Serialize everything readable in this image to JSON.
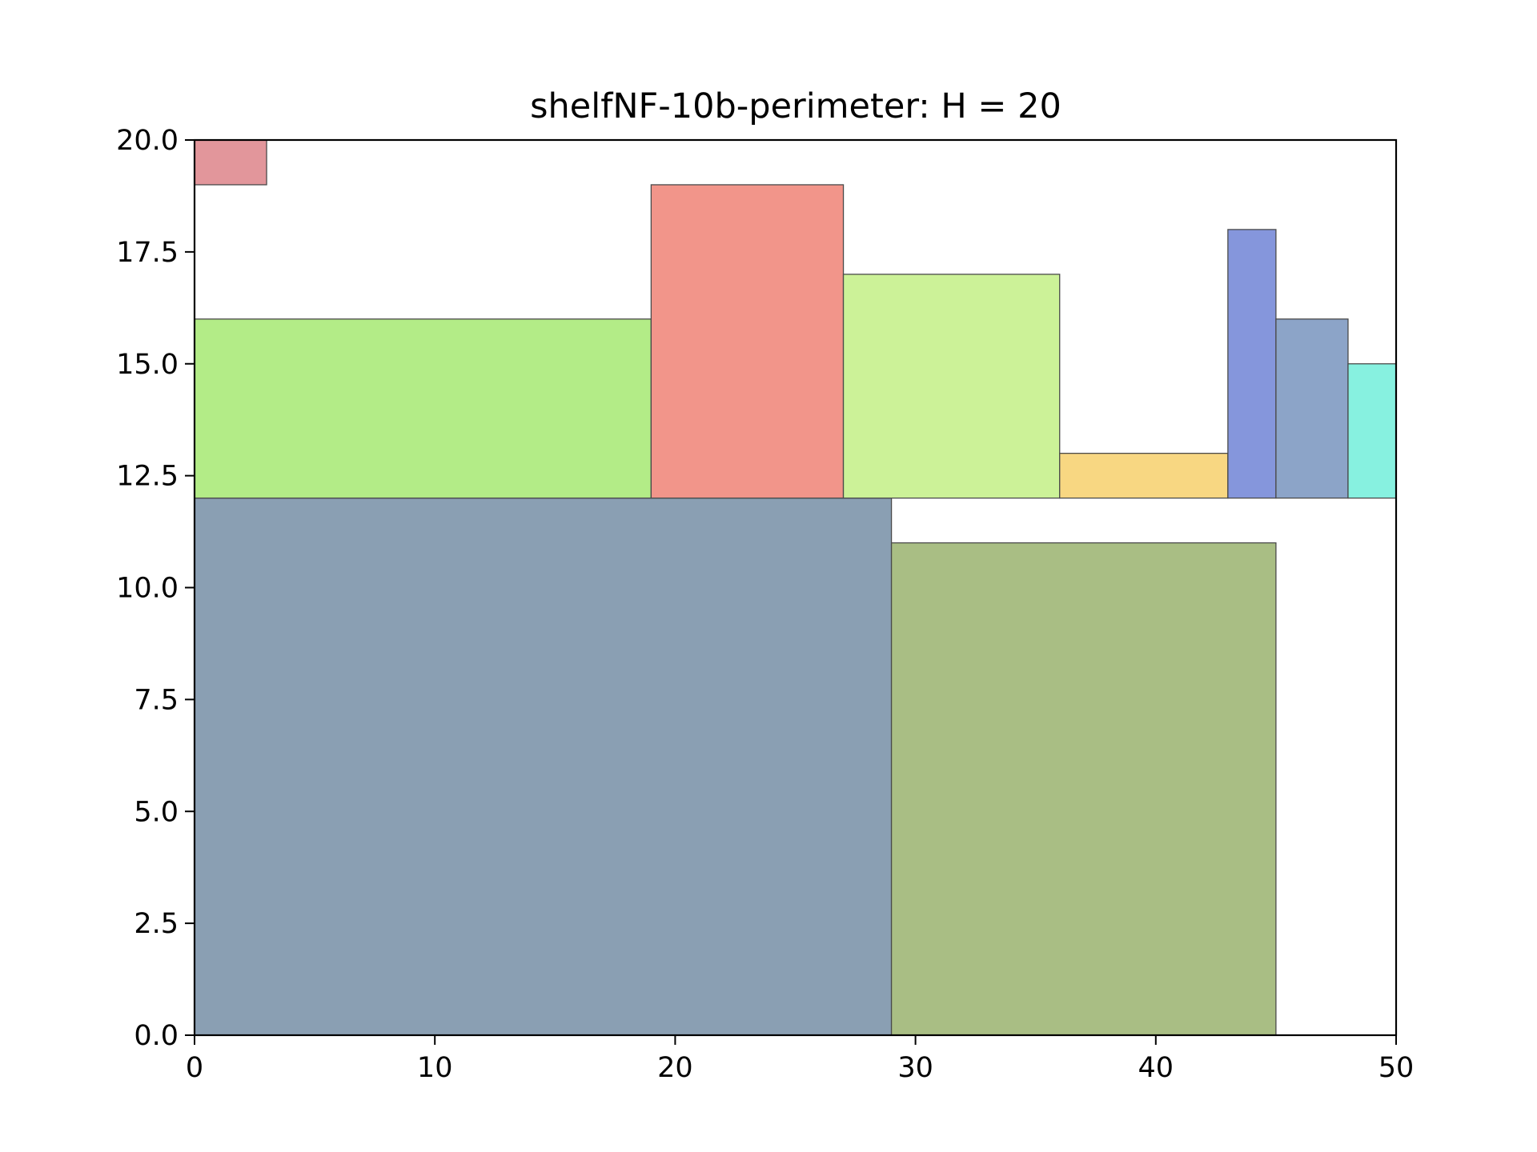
{
  "chart_data": {
    "type": "rectangle-packing",
    "title": "shelfNF-10b-perimeter: H = 20",
    "xlabel": "",
    "ylabel": "",
    "xlim": [
      0,
      50
    ],
    "ylim": [
      0,
      20
    ],
    "xticks": [
      0,
      10,
      20,
      30,
      40,
      50
    ],
    "xtick_labels": [
      "0",
      "10",
      "20",
      "30",
      "40",
      "50"
    ],
    "yticks": [
      0,
      2.5,
      5,
      7.5,
      10,
      12.5,
      15,
      17.5,
      20
    ],
    "ytick_labels": [
      "0.0",
      "2.5",
      "5.0",
      "7.5",
      "10.0",
      "12.5",
      "15.0",
      "17.5",
      "20.0"
    ],
    "grid": false,
    "rectangles": [
      {
        "x": 0,
        "y": 0,
        "w": 29,
        "h": 12,
        "color": "#8a9fb3"
      },
      {
        "x": 29,
        "y": 0,
        "w": 16,
        "h": 11,
        "color": "#a9be84"
      },
      {
        "x": 0,
        "y": 12,
        "w": 19,
        "h": 4,
        "color": "#b3ec87"
      },
      {
        "x": 19,
        "y": 12,
        "w": 8,
        "h": 7,
        "color": "#f2958a"
      },
      {
        "x": 27,
        "y": 12,
        "w": 9,
        "h": 5,
        "color": "#ccf298"
      },
      {
        "x": 36,
        "y": 12,
        "w": 7,
        "h": 1,
        "color": "#f8d782"
      },
      {
        "x": 43,
        "y": 12,
        "w": 2,
        "h": 6,
        "color": "#8596dc"
      },
      {
        "x": 45,
        "y": 12,
        "w": 3,
        "h": 4,
        "color": "#8ca4c8"
      },
      {
        "x": 48,
        "y": 12,
        "w": 2,
        "h": 3,
        "color": "#87f1e0"
      },
      {
        "x": 0,
        "y": 19,
        "w": 3,
        "h": 1,
        "color": "#e2969b"
      }
    ]
  }
}
